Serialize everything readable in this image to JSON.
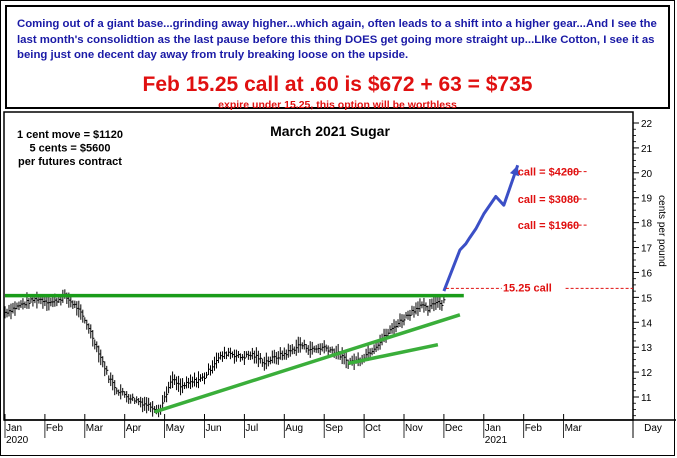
{
  "header": {
    "commentary": "Coming out of a giant base...grinding away higher...which again, often leads to a shift into a higher gear...And I see the last month's consolidtion as the last pause before this thing DOES get going more straight up...LIke Cotton, I see it as being just one decent day away from truly breaking loose on the upside.",
    "headline": "Feb 15.25 call at .60 is $672 + 63 = $735",
    "subline": "expire under 15.25, this option will be worthless"
  },
  "chart_data": {
    "type": "bar",
    "title": "March 2021 Sugar",
    "ylabel": "cents per pound",
    "xlabel": "Day",
    "ylim": [
      10,
      22
    ],
    "y_ticks": [
      11,
      12,
      13,
      14,
      15,
      16,
      17,
      18,
      19,
      20,
      21,
      22
    ],
    "x_tick_labels": [
      "Jan",
      "Feb",
      "Mar",
      "Apr",
      "May",
      "Jun",
      "Jul",
      "Aug",
      "Sep",
      "Oct",
      "Nov",
      "Dec",
      "Jan",
      "Feb",
      "Mar"
    ],
    "year_labels": [
      {
        "text": "2020",
        "month": 0
      },
      {
        "text": "2021",
        "month": 12
      }
    ],
    "info_lines": [
      "1 cent move = $1120",
      "5 cents = $5600",
      "per futures contract"
    ],
    "price_path": [
      [
        0.0,
        14.4
      ],
      [
        0.4,
        14.7
      ],
      [
        0.8,
        14.95
      ],
      [
        1.2,
        14.8
      ],
      [
        1.5,
        15.05
      ],
      [
        1.8,
        14.6
      ],
      [
        2.1,
        13.8
      ],
      [
        2.4,
        12.6
      ],
      [
        2.6,
        11.8
      ],
      [
        2.8,
        11.3
      ],
      [
        3.1,
        11.0
      ],
      [
        3.4,
        10.8
      ],
      [
        3.7,
        10.6
      ],
      [
        3.9,
        10.5
      ],
      [
        4.0,
        11.0
      ],
      [
        4.2,
        11.7
      ],
      [
        4.4,
        11.4
      ],
      [
        4.7,
        11.6
      ],
      [
        5.0,
        11.8
      ],
      [
        5.3,
        12.5
      ],
      [
        5.6,
        12.8
      ],
      [
        5.9,
        12.6
      ],
      [
        6.2,
        12.7
      ],
      [
        6.5,
        12.4
      ],
      [
        6.8,
        12.6
      ],
      [
        7.1,
        12.8
      ],
      [
        7.4,
        13.1
      ],
      [
        7.7,
        12.9
      ],
      [
        8.0,
        13.0
      ],
      [
        8.3,
        12.8
      ],
      [
        8.6,
        12.4
      ],
      [
        8.9,
        12.5
      ],
      [
        9.2,
        12.9
      ],
      [
        9.5,
        13.4
      ],
      [
        9.8,
        13.9
      ],
      [
        10.1,
        14.3
      ],
      [
        10.4,
        14.7
      ],
      [
        10.6,
        14.5
      ],
      [
        10.8,
        14.85
      ],
      [
        10.95,
        14.75
      ],
      [
        11.05,
        15.1
      ]
    ],
    "series": [
      {
        "name": "",
        "color": "#1a9c1a",
        "points": [
          [
            0.0,
            15.07
          ],
          [
            11.5,
            15.07
          ]
        ]
      },
      {
        "name": "",
        "color": "#3aae3a",
        "points": [
          [
            3.75,
            10.4
          ],
          [
            11.4,
            14.3
          ]
        ]
      },
      {
        "name": "",
        "color": "#3aae3a",
        "points": [
          [
            8.6,
            12.35
          ],
          [
            10.85,
            13.1
          ]
        ]
      },
      {
        "name": "",
        "color": "#3b4fc6",
        "points": [
          [
            11.0,
            15.25
          ],
          [
            11.4,
            16.9
          ],
          [
            11.55,
            17.15
          ],
          [
            11.65,
            17.4
          ],
          [
            11.8,
            17.75
          ],
          [
            12.0,
            18.35
          ],
          [
            12.3,
            19.05
          ],
          [
            12.5,
            18.7
          ],
          [
            12.85,
            20.3
          ]
        ]
      }
    ],
    "annotations": [
      {
        "text": "call = $4200",
        "y": 20.05
      },
      {
        "text": "call = $3080",
        "y": 18.95
      },
      {
        "text": "call = $1960",
        "y": 17.9
      },
      {
        "text": "15.25 call",
        "y": 15.4
      }
    ]
  }
}
